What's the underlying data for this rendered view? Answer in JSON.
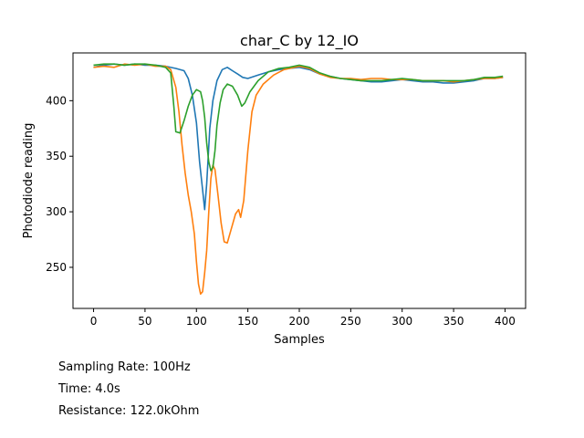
{
  "chart_data": {
    "type": "line",
    "title": "char_C by 12_IO",
    "xlabel": "Samples",
    "ylabel": "Photodiode reading",
    "xlim": [
      -20,
      420
    ],
    "ylim": [
      213,
      443
    ],
    "xticks": [
      0,
      50,
      100,
      150,
      200,
      250,
      300,
      350,
      400
    ],
    "yticks": [
      250,
      300,
      350,
      400
    ],
    "grid": false,
    "legend": "none",
    "series": [
      {
        "color": "#1f77b4",
        "points": [
          [
            0,
            430
          ],
          [
            10,
            432
          ],
          [
            20,
            433
          ],
          [
            30,
            432
          ],
          [
            40,
            433
          ],
          [
            50,
            432
          ],
          [
            60,
            432
          ],
          [
            70,
            431
          ],
          [
            80,
            429
          ],
          [
            88,
            427
          ],
          [
            92,
            420
          ],
          [
            96,
            405
          ],
          [
            100,
            380
          ],
          [
            103,
            345
          ],
          [
            106,
            320
          ],
          [
            108,
            302
          ],
          [
            110,
            325
          ],
          [
            113,
            375
          ],
          [
            116,
            400
          ],
          [
            120,
            418
          ],
          [
            125,
            428
          ],
          [
            130,
            430
          ],
          [
            135,
            427
          ],
          [
            140,
            424
          ],
          [
            145,
            421
          ],
          [
            150,
            420
          ],
          [
            160,
            423
          ],
          [
            170,
            426
          ],
          [
            180,
            428
          ],
          [
            190,
            429
          ],
          [
            200,
            430
          ],
          [
            210,
            428
          ],
          [
            220,
            424
          ],
          [
            230,
            422
          ],
          [
            240,
            420
          ],
          [
            250,
            419
          ],
          [
            260,
            418
          ],
          [
            270,
            417
          ],
          [
            280,
            417
          ],
          [
            290,
            418
          ],
          [
            300,
            419
          ],
          [
            310,
            418
          ],
          [
            320,
            417
          ],
          [
            330,
            417
          ],
          [
            340,
            416
          ],
          [
            350,
            416
          ],
          [
            360,
            417
          ],
          [
            370,
            418
          ],
          [
            380,
            420
          ],
          [
            390,
            420
          ],
          [
            398,
            421
          ]
        ]
      },
      {
        "color": "#ff7f0e",
        "points": [
          [
            0,
            430
          ],
          [
            10,
            431
          ],
          [
            20,
            430
          ],
          [
            30,
            433
          ],
          [
            40,
            432
          ],
          [
            50,
            433
          ],
          [
            60,
            431
          ],
          [
            70,
            431
          ],
          [
            75,
            428
          ],
          [
            80,
            412
          ],
          [
            83,
            390
          ],
          [
            86,
            360
          ],
          [
            89,
            335
          ],
          [
            92,
            315
          ],
          [
            95,
            300
          ],
          [
            98,
            280
          ],
          [
            100,
            255
          ],
          [
            102,
            235
          ],
          [
            104,
            226
          ],
          [
            106,
            228
          ],
          [
            108,
            245
          ],
          [
            110,
            265
          ],
          [
            112,
            300
          ],
          [
            114,
            330
          ],
          [
            116,
            342
          ],
          [
            118,
            338
          ],
          [
            121,
            315
          ],
          [
            124,
            290
          ],
          [
            127,
            273
          ],
          [
            130,
            272
          ],
          [
            134,
            285
          ],
          [
            138,
            298
          ],
          [
            141,
            302
          ],
          [
            143,
            295
          ],
          [
            146,
            310
          ],
          [
            150,
            355
          ],
          [
            154,
            390
          ],
          [
            158,
            405
          ],
          [
            165,
            415
          ],
          [
            175,
            423
          ],
          [
            185,
            428
          ],
          [
            195,
            430
          ],
          [
            200,
            431
          ],
          [
            210,
            429
          ],
          [
            220,
            424
          ],
          [
            230,
            421
          ],
          [
            240,
            420
          ],
          [
            250,
            420
          ],
          [
            260,
            419
          ],
          [
            270,
            420
          ],
          [
            280,
            420
          ],
          [
            290,
            419
          ],
          [
            300,
            419
          ],
          [
            310,
            419
          ],
          [
            320,
            418
          ],
          [
            330,
            418
          ],
          [
            340,
            418
          ],
          [
            350,
            417
          ],
          [
            360,
            418
          ],
          [
            370,
            419
          ],
          [
            380,
            420
          ],
          [
            390,
            420
          ],
          [
            398,
            421
          ]
        ]
      },
      {
        "color": "#2ca02c",
        "points": [
          [
            0,
            432
          ],
          [
            10,
            433
          ],
          [
            20,
            433
          ],
          [
            30,
            432
          ],
          [
            40,
            433
          ],
          [
            50,
            433
          ],
          [
            60,
            432
          ],
          [
            70,
            430
          ],
          [
            75,
            425
          ],
          [
            78,
            395
          ],
          [
            80,
            372
          ],
          [
            84,
            371
          ],
          [
            88,
            382
          ],
          [
            92,
            395
          ],
          [
            96,
            405
          ],
          [
            100,
            410
          ],
          [
            104,
            408
          ],
          [
            106,
            400
          ],
          [
            108,
            385
          ],
          [
            110,
            362
          ],
          [
            112,
            345
          ],
          [
            114,
            337
          ],
          [
            116,
            340
          ],
          [
            118,
            355
          ],
          [
            120,
            378
          ],
          [
            123,
            398
          ],
          [
            126,
            410
          ],
          [
            130,
            415
          ],
          [
            135,
            413
          ],
          [
            140,
            405
          ],
          [
            144,
            395
          ],
          [
            147,
            398
          ],
          [
            152,
            408
          ],
          [
            160,
            418
          ],
          [
            170,
            426
          ],
          [
            180,
            429
          ],
          [
            190,
            430
          ],
          [
            200,
            432
          ],
          [
            210,
            430
          ],
          [
            220,
            425
          ],
          [
            230,
            422
          ],
          [
            240,
            420
          ],
          [
            250,
            419
          ],
          [
            260,
            418
          ],
          [
            270,
            418
          ],
          [
            280,
            418
          ],
          [
            290,
            419
          ],
          [
            300,
            420
          ],
          [
            310,
            419
          ],
          [
            320,
            418
          ],
          [
            330,
            418
          ],
          [
            340,
            418
          ],
          [
            350,
            418
          ],
          [
            360,
            418
          ],
          [
            370,
            419
          ],
          [
            380,
            421
          ],
          [
            390,
            421
          ],
          [
            398,
            422
          ]
        ]
      }
    ]
  },
  "info": {
    "sampling_rate": "Sampling Rate: 100Hz",
    "time": "Time: 4.0s",
    "resistance": "Resistance: 122.0kOhm"
  }
}
